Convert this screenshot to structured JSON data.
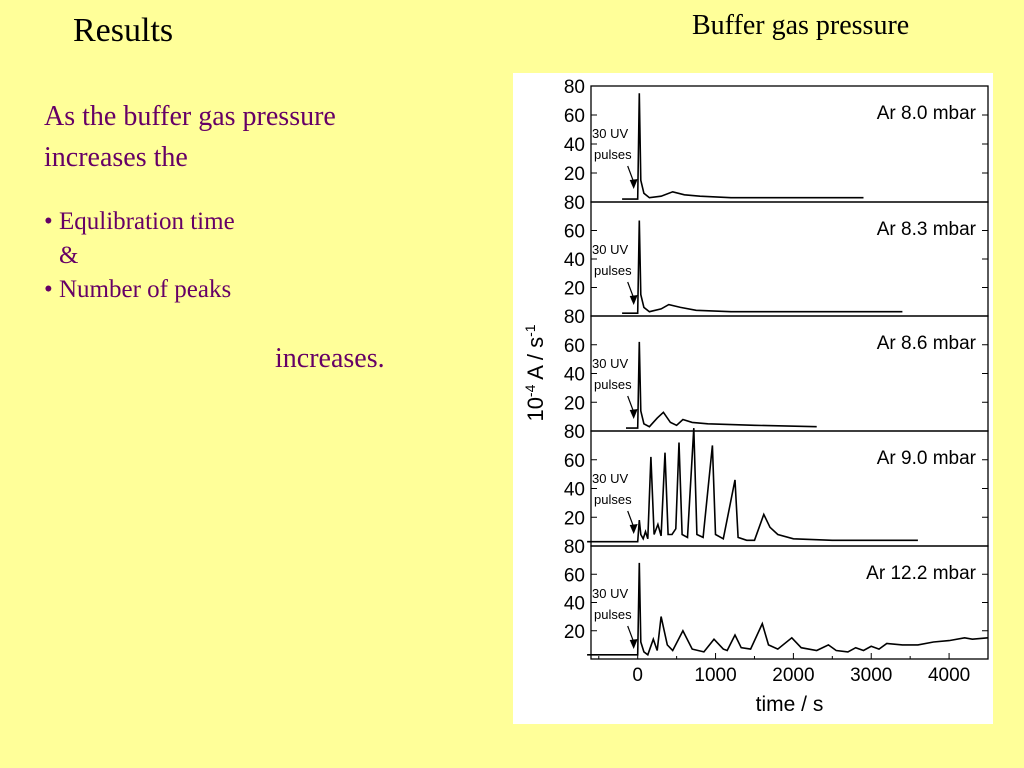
{
  "slide": {
    "title": "Results",
    "subtitle": "Buffer gas pressure",
    "intro_line1": "As the buffer gas pressure",
    "intro_line2": "increases the",
    "bullets": [
      "• Equlibration time",
      "&",
      "• Number of peaks"
    ],
    "conclusion": "increases."
  },
  "chart_data": {
    "type": "line",
    "xlabel": "time / s",
    "ylabel": "10-4 A / s-1",
    "xticks": [
      0,
      1000,
      2000,
      3000,
      4000
    ],
    "xlim": [
      -600,
      4500
    ],
    "ylim": [
      0,
      80
    ],
    "yticks": [
      20,
      40,
      60,
      80
    ],
    "annotation_line1": "30 UV",
    "annotation_line2": "pulses",
    "series": [
      {
        "name": "Ar 8.0 mbar",
        "baseline": 2,
        "end": 2900,
        "points": [
          [
            -200,
            2
          ],
          [
            0,
            2
          ],
          [
            20,
            75
          ],
          [
            40,
            15
          ],
          [
            80,
            6
          ],
          [
            150,
            3
          ],
          [
            300,
            4
          ],
          [
            450,
            7
          ],
          [
            600,
            5
          ],
          [
            800,
            4
          ],
          [
            1200,
            3
          ],
          [
            2000,
            3
          ],
          [
            2900,
            3
          ]
        ]
      },
      {
        "name": "Ar 8.3 mbar",
        "baseline": 2,
        "end": 3400,
        "points": [
          [
            -200,
            2
          ],
          [
            0,
            2
          ],
          [
            20,
            67
          ],
          [
            40,
            15
          ],
          [
            80,
            6
          ],
          [
            150,
            3
          ],
          [
            300,
            5
          ],
          [
            400,
            8
          ],
          [
            550,
            6
          ],
          [
            750,
            4
          ],
          [
            1200,
            3
          ],
          [
            2000,
            3
          ],
          [
            3400,
            3
          ]
        ]
      },
      {
        "name": "Ar 8.6 mbar",
        "baseline": 2,
        "end": 2300,
        "points": [
          [
            -150,
            2
          ],
          [
            0,
            2
          ],
          [
            20,
            62
          ],
          [
            40,
            14
          ],
          [
            80,
            5
          ],
          [
            150,
            3
          ],
          [
            250,
            9
          ],
          [
            330,
            13
          ],
          [
            420,
            6
          ],
          [
            500,
            4
          ],
          [
            580,
            8
          ],
          [
            700,
            6
          ],
          [
            900,
            5
          ],
          [
            1500,
            4
          ],
          [
            2300,
            3
          ]
        ]
      },
      {
        "name": "Ar 9.0 mbar",
        "baseline": 3,
        "end": 3600,
        "points": [
          [
            -650,
            3
          ],
          [
            -50,
            3
          ],
          [
            0,
            3
          ],
          [
            20,
            18
          ],
          [
            40,
            8
          ],
          [
            70,
            5
          ],
          [
            100,
            10
          ],
          [
            130,
            5
          ],
          [
            170,
            62
          ],
          [
            210,
            8
          ],
          [
            260,
            15
          ],
          [
            300,
            7
          ],
          [
            350,
            65
          ],
          [
            390,
            8
          ],
          [
            440,
            8
          ],
          [
            490,
            12
          ],
          [
            530,
            72
          ],
          [
            570,
            8
          ],
          [
            640,
            6
          ],
          [
            720,
            82
          ],
          [
            760,
            8
          ],
          [
            840,
            6
          ],
          [
            960,
            70
          ],
          [
            1000,
            8
          ],
          [
            1100,
            5
          ],
          [
            1250,
            46
          ],
          [
            1290,
            6
          ],
          [
            1400,
            4
          ],
          [
            1500,
            4
          ],
          [
            1620,
            22
          ],
          [
            1700,
            13
          ],
          [
            1800,
            8
          ],
          [
            2000,
            5
          ],
          [
            2500,
            4
          ],
          [
            3000,
            4
          ],
          [
            3600,
            4
          ]
        ]
      },
      {
        "name": "Ar 12.2 mbar",
        "baseline": 3,
        "end": 4500,
        "points": [
          [
            -650,
            3
          ],
          [
            -100,
            3
          ],
          [
            0,
            3
          ],
          [
            20,
            68
          ],
          [
            40,
            12
          ],
          [
            80,
            5
          ],
          [
            130,
            3
          ],
          [
            200,
            14
          ],
          [
            250,
            6
          ],
          [
            300,
            30
          ],
          [
            380,
            10
          ],
          [
            450,
            6
          ],
          [
            580,
            20
          ],
          [
            700,
            7
          ],
          [
            850,
            5
          ],
          [
            980,
            14
          ],
          [
            1100,
            7
          ],
          [
            1150,
            6
          ],
          [
            1250,
            17
          ],
          [
            1330,
            8
          ],
          [
            1450,
            7
          ],
          [
            1600,
            25
          ],
          [
            1680,
            10
          ],
          [
            1800,
            7
          ],
          [
            1980,
            15
          ],
          [
            2100,
            8
          ],
          [
            2300,
            6
          ],
          [
            2450,
            10
          ],
          [
            2550,
            6
          ],
          [
            2700,
            5
          ],
          [
            2800,
            8
          ],
          [
            2900,
            6
          ],
          [
            3000,
            9
          ],
          [
            3100,
            7
          ],
          [
            3200,
            11
          ],
          [
            3400,
            10
          ],
          [
            3600,
            10
          ],
          [
            3800,
            12
          ],
          [
            4000,
            13
          ],
          [
            4200,
            15
          ],
          [
            4300,
            14
          ],
          [
            4500,
            15
          ]
        ]
      }
    ]
  }
}
